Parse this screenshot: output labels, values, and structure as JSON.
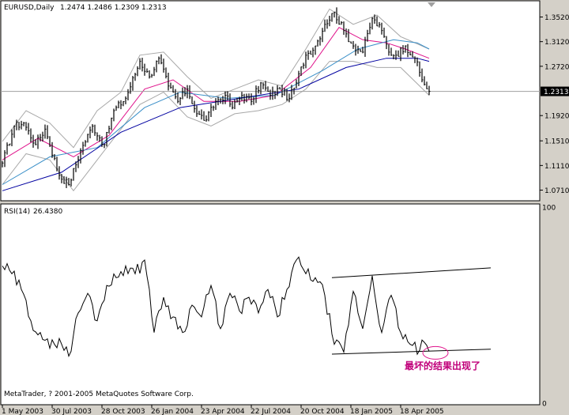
{
  "chart_data": {
    "type": "line",
    "instrument": "EURUSD",
    "timeframe": "Daily",
    "title": "EURUSD,Daily",
    "ohlc_header": "1.2474 1.2486 1.2309 1.2313",
    "last_price_label": "1.2313",
    "last_price": 1.2313,
    "price_axis": {
      "range": [
        1.055,
        1.377
      ],
      "ticks": [
        "1.3520",
        "1.3120",
        "1.2720",
        "1.2313",
        "1.1920",
        "1.1510",
        "1.1110",
        "1.0710"
      ],
      "tick_values": [
        1.352,
        1.312,
        1.272,
        1.2313,
        1.192,
        1.151,
        1.111,
        1.071
      ]
    },
    "x_axis": {
      "labels": [
        "1 May 2003",
        "30 Jul 2003",
        "28 Oct 2003",
        "26 Jan 2004",
        "23 Apr 2004",
        "22 Jul 2004",
        "20 Oct 2004",
        "18 Jan 2005",
        "18 Apr 2005"
      ],
      "label_bar_index": [
        0,
        21,
        42,
        63,
        84,
        105,
        126,
        147,
        168
      ]
    },
    "bar_count": 181,
    "price_series": {
      "name": "EURUSD",
      "type": "hlc",
      "keypoints": [
        [
          0,
          1.115
        ],
        [
          5,
          1.175
        ],
        [
          9,
          1.18
        ],
        [
          14,
          1.145
        ],
        [
          18,
          1.17
        ],
        [
          24,
          1.095
        ],
        [
          28,
          1.08
        ],
        [
          33,
          1.135
        ],
        [
          38,
          1.175
        ],
        [
          43,
          1.145
        ],
        [
          47,
          1.2
        ],
        [
          52,
          1.22
        ],
        [
          58,
          1.28
        ],
        [
          62,
          1.255
        ],
        [
          66,
          1.285
        ],
        [
          70,
          1.24
        ],
        [
          74,
          1.215
        ],
        [
          78,
          1.235
        ],
        [
          82,
          1.195
        ],
        [
          86,
          1.185
        ],
        [
          90,
          1.215
        ],
        [
          94,
          1.225
        ],
        [
          97,
          1.205
        ],
        [
          101,
          1.225
        ],
        [
          105,
          1.215
        ],
        [
          109,
          1.245
        ],
        [
          113,
          1.225
        ],
        [
          117,
          1.235
        ],
        [
          121,
          1.22
        ],
        [
          124,
          1.245
        ],
        [
          128,
          1.29
        ],
        [
          132,
          1.305
        ],
        [
          136,
          1.34
        ],
        [
          140,
          1.36
        ],
        [
          144,
          1.33
        ],
        [
          148,
          1.305
        ],
        [
          152,
          1.295
        ],
        [
          156,
          1.35
        ],
        [
          160,
          1.33
        ],
        [
          163,
          1.295
        ],
        [
          166,
          1.29
        ],
        [
          170,
          1.305
        ],
        [
          174,
          1.285
        ],
        [
          177,
          1.25
        ],
        [
          180,
          1.2313
        ]
      ]
    },
    "moving_averages": [
      {
        "color": "#e0148c",
        "keypoints": [
          [
            0,
            1.12
          ],
          [
            15,
            1.155
          ],
          [
            30,
            1.125
          ],
          [
            45,
            1.16
          ],
          [
            60,
            1.235
          ],
          [
            72,
            1.25
          ],
          [
            85,
            1.215
          ],
          [
            100,
            1.215
          ],
          [
            115,
            1.225
          ],
          [
            130,
            1.27
          ],
          [
            142,
            1.335
          ],
          [
            152,
            1.315
          ],
          [
            162,
            1.31
          ],
          [
            170,
            1.3
          ],
          [
            180,
            1.285
          ]
        ]
      },
      {
        "color": "#3a8fc8",
        "keypoints": [
          [
            0,
            1.08
          ],
          [
            20,
            1.125
          ],
          [
            40,
            1.14
          ],
          [
            60,
            1.205
          ],
          [
            75,
            1.23
          ],
          [
            95,
            1.22
          ],
          [
            115,
            1.225
          ],
          [
            135,
            1.265
          ],
          [
            150,
            1.3
          ],
          [
            165,
            1.315
          ],
          [
            175,
            1.31
          ],
          [
            180,
            1.3
          ]
        ]
      },
      {
        "color": "#0000a0",
        "keypoints": [
          [
            0,
            1.07
          ],
          [
            25,
            1.1
          ],
          [
            50,
            1.165
          ],
          [
            75,
            1.205
          ],
          [
            100,
            1.22
          ],
          [
            125,
            1.235
          ],
          [
            145,
            1.27
          ],
          [
            162,
            1.285
          ],
          [
            175,
            1.285
          ],
          [
            180,
            1.28
          ]
        ]
      }
    ],
    "bands": {
      "color": "#a8a8a8",
      "upper": [
        [
          0,
          1.15
        ],
        [
          10,
          1.2
        ],
        [
          20,
          1.18
        ],
        [
          30,
          1.14
        ],
        [
          40,
          1.2
        ],
        [
          50,
          1.23
        ],
        [
          58,
          1.29
        ],
        [
          68,
          1.295
        ],
        [
          78,
          1.255
        ],
        [
          88,
          1.22
        ],
        [
          98,
          1.235
        ],
        [
          108,
          1.25
        ],
        [
          118,
          1.24
        ],
        [
          128,
          1.3
        ],
        [
          138,
          1.365
        ],
        [
          148,
          1.34
        ],
        [
          158,
          1.355
        ],
        [
          168,
          1.32
        ],
        [
          180,
          1.3
        ]
      ],
      "lower": [
        [
          0,
          1.08
        ],
        [
          10,
          1.13
        ],
        [
          20,
          1.12
        ],
        [
          30,
          1.07
        ],
        [
          40,
          1.12
        ],
        [
          50,
          1.17
        ],
        [
          58,
          1.21
        ],
        [
          68,
          1.23
        ],
        [
          78,
          1.19
        ],
        [
          88,
          1.175
        ],
        [
          98,
          1.195
        ],
        [
          108,
          1.2
        ],
        [
          118,
          1.21
        ],
        [
          128,
          1.235
        ],
        [
          138,
          1.28
        ],
        [
          148,
          1.28
        ],
        [
          158,
          1.27
        ],
        [
          168,
          1.27
        ],
        [
          180,
          1.225
        ]
      ]
    },
    "rsi": {
      "label": "RSI(14)",
      "value_label": "26.4380",
      "range": [
        0,
        100
      ],
      "ticks": [
        "100",
        "0"
      ],
      "tick_values": [
        100,
        0
      ],
      "keypoints": [
        [
          0,
          70
        ],
        [
          4,
          66
        ],
        [
          8,
          58
        ],
        [
          12,
          42
        ],
        [
          16,
          36
        ],
        [
          20,
          28
        ],
        [
          24,
          33
        ],
        [
          28,
          24
        ],
        [
          32,
          46
        ],
        [
          36,
          56
        ],
        [
          40,
          42
        ],
        [
          44,
          60
        ],
        [
          48,
          64
        ],
        [
          52,
          70
        ],
        [
          56,
          66
        ],
        [
          60,
          73
        ],
        [
          62,
          58
        ],
        [
          64,
          36
        ],
        [
          68,
          54
        ],
        [
          72,
          44
        ],
        [
          76,
          36
        ],
        [
          80,
          50
        ],
        [
          84,
          44
        ],
        [
          88,
          60
        ],
        [
          92,
          38
        ],
        [
          96,
          56
        ],
        [
          100,
          47
        ],
        [
          104,
          54
        ],
        [
          108,
          46
        ],
        [
          112,
          58
        ],
        [
          116,
          44
        ],
        [
          120,
          58
        ],
        [
          124,
          73
        ],
        [
          128,
          66
        ],
        [
          132,
          64
        ],
        [
          136,
          55
        ],
        [
          140,
          30
        ],
        [
          144,
          26
        ],
        [
          148,
          57
        ],
        [
          152,
          38
        ],
        [
          156,
          65
        ],
        [
          160,
          36
        ],
        [
          164,
          55
        ],
        [
          168,
          36
        ],
        [
          172,
          30
        ],
        [
          176,
          27
        ],
        [
          178,
          31
        ],
        [
          180,
          26.438
        ]
      ]
    },
    "trendlines": [
      {
        "panel": "rsi",
        "from": [
          139,
          64
        ],
        "to": [
          206,
          69
        ]
      },
      {
        "panel": "rsi",
        "from": [
          139,
          25
        ],
        "to": [
          206,
          27.5
        ]
      }
    ],
    "annotation": {
      "text": "最坏的结果出现了",
      "color": "#c0007a"
    },
    "copyright": "MetaTrader, ? 2001-2005 MetaQuotes Software Corp."
  }
}
